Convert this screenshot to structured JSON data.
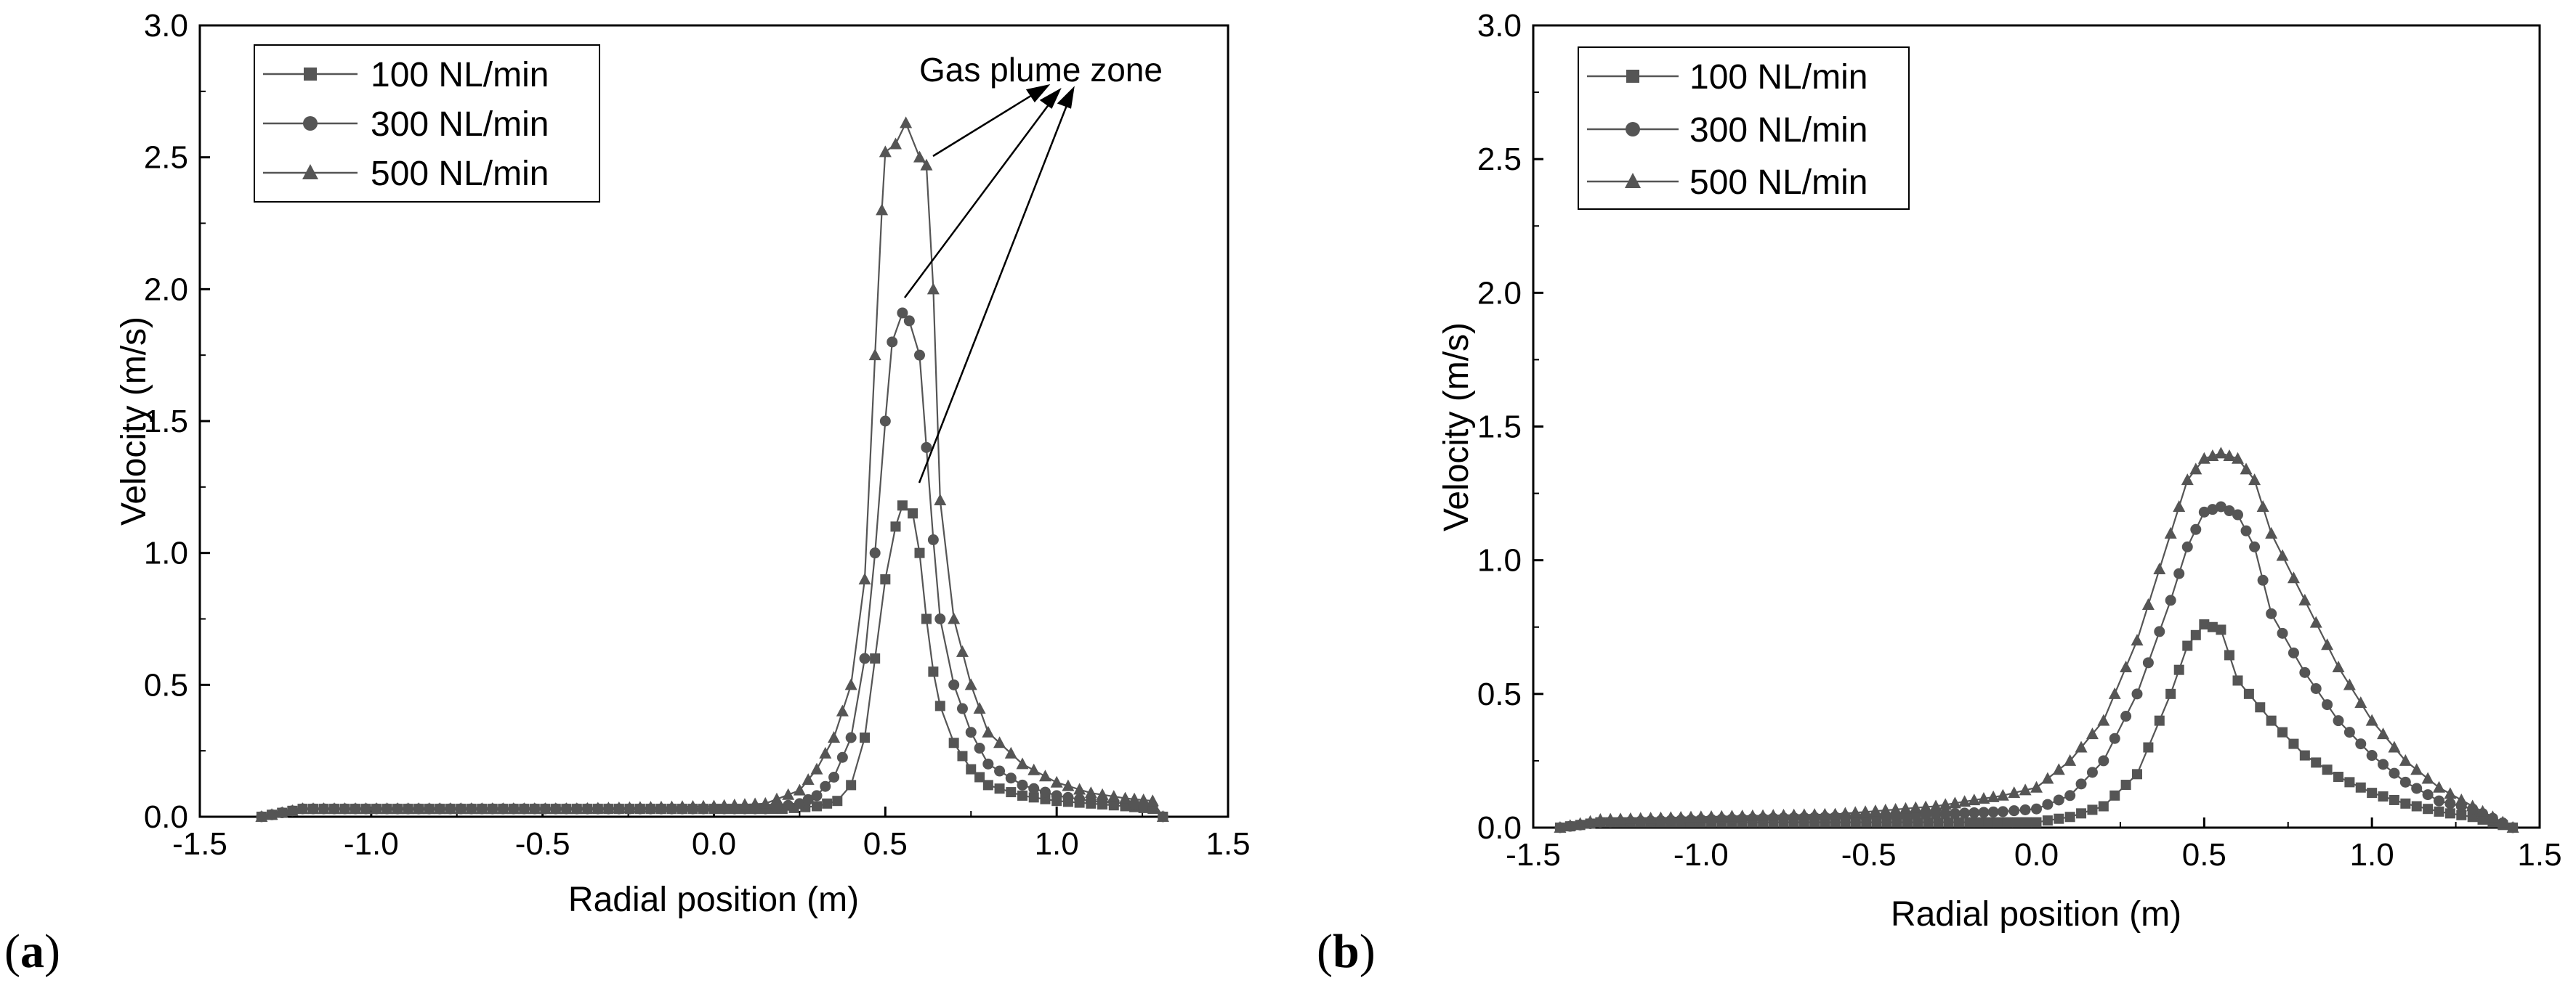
{
  "chart_data": [
    {
      "type": "line",
      "panel_label": "(a)",
      "panel_letter": "a",
      "xlabel": "Radial position (m)",
      "ylabel": "Velocity (m/s)",
      "xlim": [
        -1.5,
        1.5
      ],
      "ylim": [
        0,
        3.0
      ],
      "xticks": [
        "-1.5",
        "-1.0",
        "-0.5",
        "0.0",
        "0.5",
        "1.0",
        "1.5"
      ],
      "yticks": [
        "0.0",
        "0.5",
        "1.0",
        "1.5",
        "2.0",
        "2.5",
        "3.0"
      ],
      "legend_position": "top-left",
      "annotation": "Gas plume zone",
      "series": [
        {
          "name": "100 NL/min",
          "marker": "square",
          "points": [
            [
              -1.32,
              0.0
            ],
            [
              -1.2,
              0.03
            ],
            [
              -0.8,
              0.03
            ],
            [
              -0.4,
              0.03
            ],
            [
              0.0,
              0.03
            ],
            [
              0.2,
              0.03
            ],
            [
              0.3,
              0.04
            ],
            [
              0.36,
              0.06
            ],
            [
              0.4,
              0.12
            ],
            [
              0.44,
              0.3
            ],
            [
              0.47,
              0.6
            ],
            [
              0.5,
              0.9
            ],
            [
              0.53,
              1.1
            ],
            [
              0.55,
              1.18
            ],
            [
              0.58,
              1.15
            ],
            [
              0.6,
              1.0
            ],
            [
              0.62,
              0.75
            ],
            [
              0.64,
              0.55
            ],
            [
              0.66,
              0.42
            ],
            [
              0.7,
              0.28
            ],
            [
              0.75,
              0.18
            ],
            [
              0.8,
              0.12
            ],
            [
              0.9,
              0.08
            ],
            [
              1.0,
              0.06
            ],
            [
              1.1,
              0.05
            ],
            [
              1.2,
              0.04
            ],
            [
              1.28,
              0.03
            ],
            [
              1.31,
              0.0
            ]
          ]
        },
        {
          "name": "300 NL/min",
          "marker": "circle",
          "points": [
            [
              -1.32,
              0.0
            ],
            [
              -1.2,
              0.03
            ],
            [
              -0.8,
              0.03
            ],
            [
              -0.4,
              0.03
            ],
            [
              0.0,
              0.03
            ],
            [
              0.15,
              0.03
            ],
            [
              0.25,
              0.05
            ],
            [
              0.3,
              0.08
            ],
            [
              0.35,
              0.15
            ],
            [
              0.4,
              0.3
            ],
            [
              0.44,
              0.6
            ],
            [
              0.47,
              1.0
            ],
            [
              0.5,
              1.5
            ],
            [
              0.52,
              1.8
            ],
            [
              0.55,
              1.91
            ],
            [
              0.57,
              1.88
            ],
            [
              0.6,
              1.75
            ],
            [
              0.62,
              1.4
            ],
            [
              0.64,
              1.05
            ],
            [
              0.66,
              0.75
            ],
            [
              0.7,
              0.5
            ],
            [
              0.75,
              0.32
            ],
            [
              0.8,
              0.2
            ],
            [
              0.9,
              0.12
            ],
            [
              1.0,
              0.08
            ],
            [
              1.1,
              0.06
            ],
            [
              1.2,
              0.05
            ],
            [
              1.28,
              0.04
            ],
            [
              1.31,
              0.0
            ]
          ]
        },
        {
          "name": "500 NL/min",
          "marker": "triangle",
          "points": [
            [
              -1.32,
              0.0
            ],
            [
              -1.2,
              0.03
            ],
            [
              -0.8,
              0.03
            ],
            [
              -0.4,
              0.03
            ],
            [
              0.0,
              0.04
            ],
            [
              0.15,
              0.05
            ],
            [
              0.25,
              0.1
            ],
            [
              0.3,
              0.18
            ],
            [
              0.35,
              0.3
            ],
            [
              0.4,
              0.5
            ],
            [
              0.44,
              0.9
            ],
            [
              0.47,
              1.75
            ],
            [
              0.49,
              2.3
            ],
            [
              0.5,
              2.52
            ],
            [
              0.53,
              2.55
            ],
            [
              0.56,
              2.63
            ],
            [
              0.6,
              2.5
            ],
            [
              0.62,
              2.47
            ],
            [
              0.64,
              2.0
            ],
            [
              0.66,
              1.2
            ],
            [
              0.7,
              0.75
            ],
            [
              0.75,
              0.5
            ],
            [
              0.8,
              0.32
            ],
            [
              0.9,
              0.2
            ],
            [
              1.0,
              0.13
            ],
            [
              1.1,
              0.09
            ],
            [
              1.2,
              0.07
            ],
            [
              1.28,
              0.06
            ],
            [
              1.31,
              0.0
            ]
          ]
        }
      ]
    },
    {
      "type": "line",
      "panel_label": "(b)",
      "panel_letter": "b",
      "xlabel": "Radial position (m)",
      "ylabel": "Velocity (m/s)",
      "xlim": [
        -1.5,
        1.5
      ],
      "ylim": [
        0,
        3.0
      ],
      "xticks": [
        "-1.5",
        "-1.0",
        "-0.5",
        "0.0",
        "0.5",
        "1.0",
        "1.5"
      ],
      "yticks": [
        "0.0",
        "0.5",
        "1.0",
        "1.5",
        "2.0",
        "2.5",
        "3.0"
      ],
      "legend_position": "top-left",
      "series": [
        {
          "name": "100 NL/min",
          "marker": "square",
          "points": [
            [
              -1.42,
              0.0
            ],
            [
              -1.3,
              0.02
            ],
            [
              -1.0,
              0.02
            ],
            [
              -0.6,
              0.02
            ],
            [
              -0.2,
              0.02
            ],
            [
              0.0,
              0.02
            ],
            [
              0.1,
              0.04
            ],
            [
              0.2,
              0.08
            ],
            [
              0.3,
              0.2
            ],
            [
              0.4,
              0.5
            ],
            [
              0.45,
              0.68
            ],
            [
              0.5,
              0.76
            ],
            [
              0.55,
              0.74
            ],
            [
              0.6,
              0.55
            ],
            [
              0.7,
              0.4
            ],
            [
              0.8,
              0.27
            ],
            [
              0.9,
              0.19
            ],
            [
              1.0,
              0.13
            ],
            [
              1.1,
              0.09
            ],
            [
              1.2,
              0.06
            ],
            [
              1.3,
              0.04
            ],
            [
              1.42,
              0.0
            ]
          ]
        },
        {
          "name": "300 NL/min",
          "marker": "circle",
          "points": [
            [
              -1.42,
              0.0
            ],
            [
              -1.3,
              0.02
            ],
            [
              -1.0,
              0.03
            ],
            [
              -0.6,
              0.04
            ],
            [
              -0.3,
              0.05
            ],
            [
              -0.1,
              0.06
            ],
            [
              0.0,
              0.07
            ],
            [
              0.1,
              0.12
            ],
            [
              0.2,
              0.25
            ],
            [
              0.3,
              0.5
            ],
            [
              0.4,
              0.85
            ],
            [
              0.45,
              1.05
            ],
            [
              0.5,
              1.18
            ],
            [
              0.55,
              1.2
            ],
            [
              0.6,
              1.17
            ],
            [
              0.65,
              1.05
            ],
            [
              0.7,
              0.8
            ],
            [
              0.8,
              0.58
            ],
            [
              0.9,
              0.4
            ],
            [
              1.0,
              0.27
            ],
            [
              1.1,
              0.17
            ],
            [
              1.2,
              0.1
            ],
            [
              1.3,
              0.07
            ],
            [
              1.42,
              0.0
            ]
          ]
        },
        {
          "name": "500 NL/min",
          "marker": "triangle",
          "points": [
            [
              -1.42,
              0.0
            ],
            [
              -1.3,
              0.03
            ],
            [
              -1.0,
              0.04
            ],
            [
              -0.6,
              0.05
            ],
            [
              -0.3,
              0.08
            ],
            [
              -0.1,
              0.12
            ],
            [
              0.0,
              0.15
            ],
            [
              0.1,
              0.25
            ],
            [
              0.2,
              0.4
            ],
            [
              0.3,
              0.7
            ],
            [
              0.4,
              1.1
            ],
            [
              0.45,
              1.3
            ],
            [
              0.5,
              1.38
            ],
            [
              0.55,
              1.4
            ],
            [
              0.6,
              1.38
            ],
            [
              0.65,
              1.3
            ],
            [
              0.7,
              1.1
            ],
            [
              0.8,
              0.85
            ],
            [
              0.9,
              0.6
            ],
            [
              1.0,
              0.4
            ],
            [
              1.1,
              0.25
            ],
            [
              1.2,
              0.15
            ],
            [
              1.3,
              0.08
            ],
            [
              1.42,
              0.0
            ]
          ]
        }
      ]
    }
  ]
}
